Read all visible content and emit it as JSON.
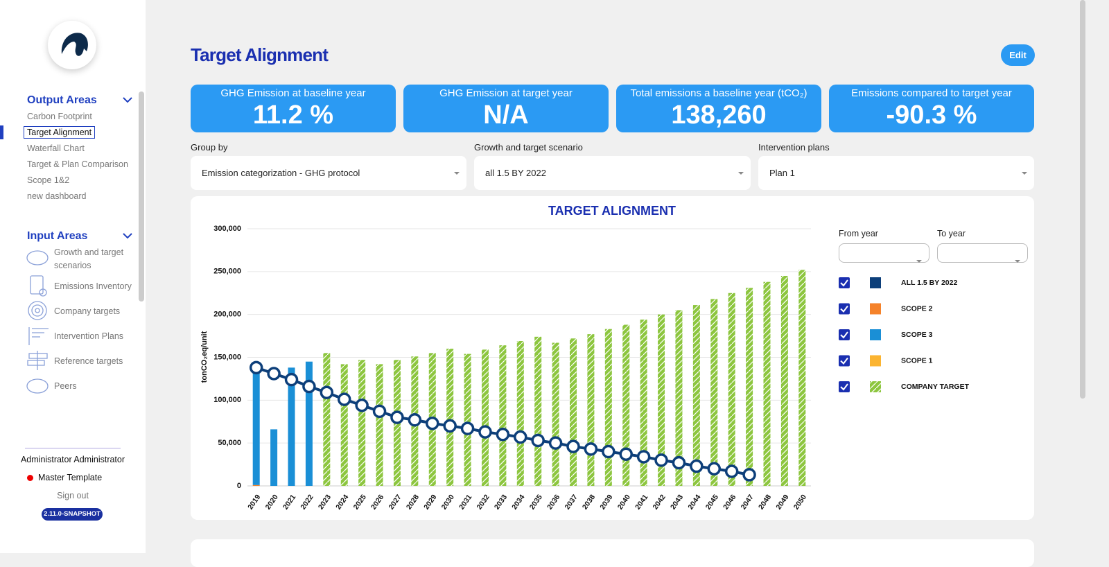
{
  "sidebar": {
    "output_areas": {
      "title": "Output Areas",
      "items": [
        "Carbon Footprint",
        "Target Alignment",
        "Waterfall Chart",
        "Target & Plan Comparison",
        "Scope 1&2",
        "new dashboard"
      ]
    },
    "input_areas": {
      "title": "Input Areas",
      "items": [
        "Growth and target scenarios",
        "Emissions Inventory",
        "Company targets",
        "Intervention Plans",
        "Reference targets",
        "Peers"
      ]
    },
    "user": "Administrator Administrator",
    "template": "Master Template",
    "sign_out": "Sign out",
    "version": "2.11.0-SNAPSHOT"
  },
  "header": {
    "title": "Target Alignment",
    "edit": "Edit"
  },
  "kpis": [
    {
      "label": "GHG Emission at baseline year",
      "value": "11.2 %"
    },
    {
      "label": "GHG Emission at target year",
      "value": "N/A"
    },
    {
      "label": "Total emissions a baseline year (tCO₂)",
      "value": "138,260"
    },
    {
      "label": "Emissions compared to target year",
      "value": "-90.3 %"
    }
  ],
  "filters": [
    {
      "label": "Group by",
      "value": "Emission categorization - GHG protocol"
    },
    {
      "label": "Growth and target scenario",
      "value": "all 1.5 BY 2022"
    },
    {
      "label": "Intervention plans",
      "value": "Plan 1"
    }
  ],
  "chart_data": {
    "type": "bar",
    "title": "TARGET ALIGNMENT",
    "y_label": "tonCO₂eq/unit",
    "from_year": "From year",
    "to_year": "To year",
    "categories": [
      "2019",
      "2020",
      "2021",
      "2022",
      "2023",
      "2024",
      "2025",
      "2026",
      "2027",
      "2028",
      "2029",
      "2030",
      "2031",
      "2032",
      "2033",
      "2034",
      "2035",
      "2036",
      "2037",
      "2038",
      "2039",
      "2040",
      "2041",
      "2042",
      "2043",
      "2044",
      "2045",
      "2046",
      "2047",
      "2048",
      "2049",
      "2050"
    ],
    "ylim": [
      0,
      300000
    ],
    "yticks": [
      0,
      {
        "value": 50000,
        "label": "50,000"
      },
      {
        "value": 100000,
        "label": "100,000"
      },
      {
        "value": 150000,
        "label": "150,000"
      },
      {
        "value": 200000,
        "label": "200,000"
      },
      {
        "value": 250000,
        "label": "250,000"
      },
      {
        "value": 300000,
        "label": "300,000"
      }
    ],
    "grid": true,
    "series": [
      {
        "name": "ALL 1.5 BY 2022",
        "color": "#0d3f7a",
        "type": "line",
        "values": [
          138000,
          131000,
          124000,
          116000,
          109000,
          101000,
          94000,
          87000,
          80000,
          77000,
          73000,
          70000,
          67000,
          63000,
          60000,
          57000,
          53000,
          50000,
          46000,
          43000,
          40000,
          37000,
          34000,
          30000,
          27000,
          23000,
          20000,
          17000,
          13000,
          null,
          null,
          null
        ]
      },
      {
        "name": "SCOPE 2",
        "color": "#f5822a",
        "values": [
          1000,
          null,
          null,
          null,
          null,
          null,
          null,
          null,
          null,
          null,
          null,
          null,
          null,
          null,
          null,
          null,
          null,
          null,
          null,
          null,
          null,
          null,
          null,
          null,
          null,
          null,
          null,
          null,
          null,
          null,
          null,
          null
        ]
      },
      {
        "name": "SCOPE 3",
        "color": "#1a8fd6",
        "values": [
          136000,
          66000,
          138000,
          145000,
          null,
          null,
          null,
          null,
          null,
          null,
          null,
          null,
          null,
          null,
          null,
          null,
          null,
          null,
          null,
          null,
          null,
          null,
          null,
          null,
          null,
          null,
          null,
          null,
          null,
          null,
          null,
          null
        ]
      },
      {
        "name": "SCOPE 1",
        "color": "#fbb431",
        "values": [
          null,
          null,
          null,
          null,
          null,
          null,
          null,
          null,
          null,
          null,
          null,
          null,
          null,
          null,
          null,
          null,
          null,
          null,
          null,
          null,
          null,
          null,
          null,
          null,
          null,
          null,
          null,
          null,
          null,
          null,
          null,
          null
        ]
      },
      {
        "name": "COMPANY TARGET",
        "color": "#8dc63f",
        "hatch": true,
        "values": [
          null,
          null,
          null,
          null,
          155000,
          142000,
          147000,
          142000,
          147000,
          151000,
          155000,
          160000,
          154000,
          159000,
          164000,
          169000,
          174000,
          167000,
          172000,
          177000,
          183000,
          188000,
          194000,
          200000,
          205000,
          211000,
          218000,
          225000,
          231000,
          238000,
          245000,
          252000
        ]
      }
    ]
  }
}
